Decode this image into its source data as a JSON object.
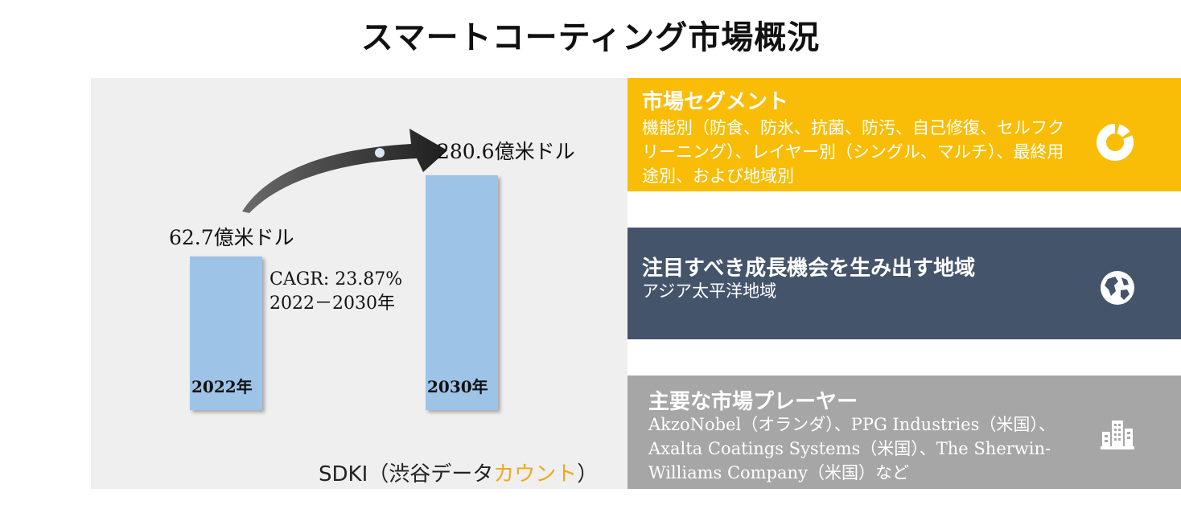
{
  "title": "スマートコーティング市場概況",
  "chart_data": {
    "type": "bar",
    "categories": [
      "2022年",
      "2030年"
    ],
    "values": [
      62.7,
      280.6
    ],
    "value_labels": [
      "62.7億米ドル",
      "280.6億米ドル"
    ],
    "unit": "億米ドル",
    "cagr_label": "CAGR: 23.87%",
    "period_label": "2022－2030年",
    "bar_color": "#9dc3e6"
  },
  "brand": {
    "main": "SDKI（渋谷データ",
    "accent": "カウント",
    "close": "）",
    "accent_color": "#f0a81c"
  },
  "cards": [
    {
      "heading": "市場セグメント",
      "body": "機能別（防食、防氷、抗菌、防汚、自己修復、セルフクリーニング）、レイヤー別（シングル、マルチ）、最終用途別、および地域別",
      "icon": "donut-chart-icon",
      "color": "#f9bd07"
    },
    {
      "heading": "注目すべき成長機会を生み出す地域",
      "body": "アジア太平洋地域",
      "icon": "globe-icon",
      "color": "#44546a"
    },
    {
      "heading": "主要な市場プレーヤー",
      "body": "AkzoNobel（オランダ）、PPG Industries（米国）、Axalta Coatings Systems（米国）、The Sherwin-Williams Company（米国）など",
      "icon": "buildings-icon",
      "color": "#a6a6a6"
    }
  ]
}
